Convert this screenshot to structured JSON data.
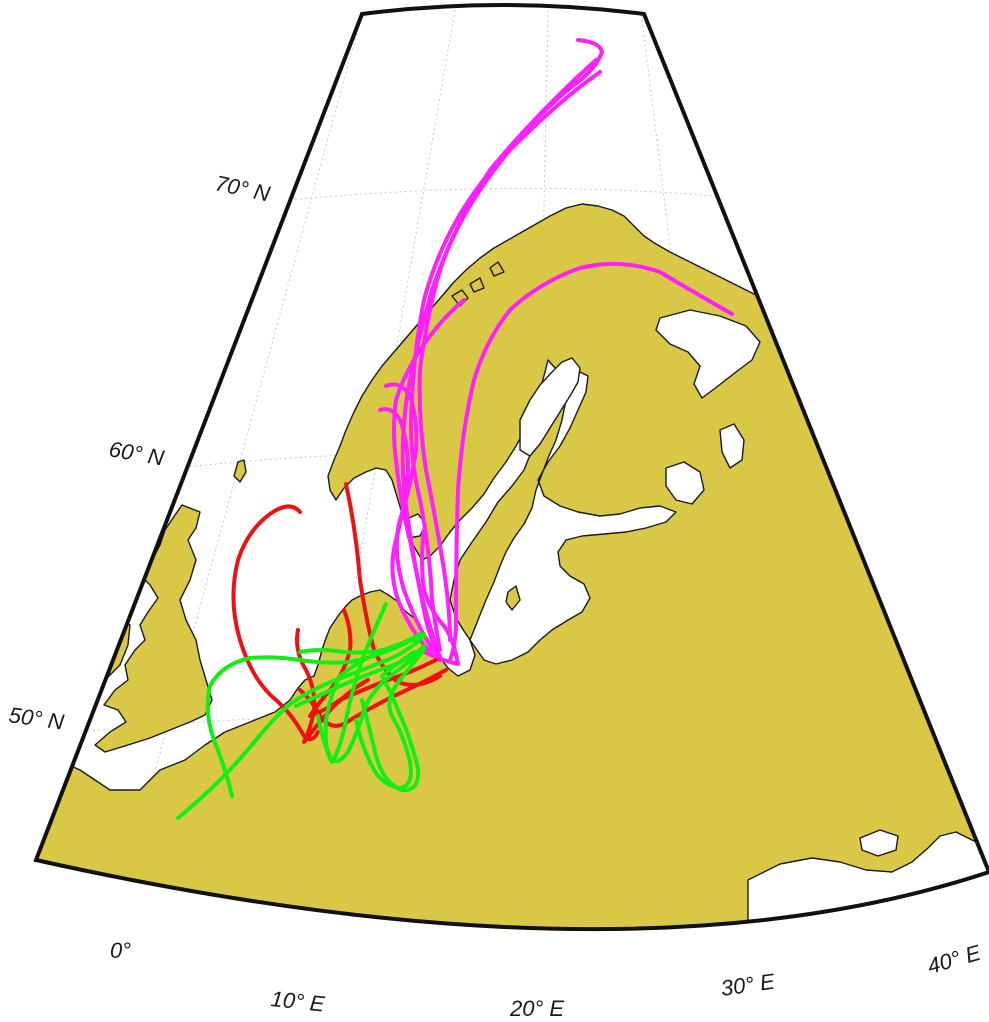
{
  "map": {
    "colors": {
      "land": "#d8c845",
      "water": "#ffffff",
      "frame": "#111111",
      "graticule": "#c8c8c8",
      "track_magenta": "#ff1fff",
      "track_red": "#ee1111",
      "track_green": "#11ee11"
    },
    "lat_labels": {
      "lat70": "70° N",
      "lat60": "60° N",
      "lat50": "50° N"
    },
    "lon_labels": {
      "lon0": "0°",
      "lon10": "10° E",
      "lon20": "20° E",
      "lon30": "30° E",
      "lon40": "40° E"
    }
  }
}
